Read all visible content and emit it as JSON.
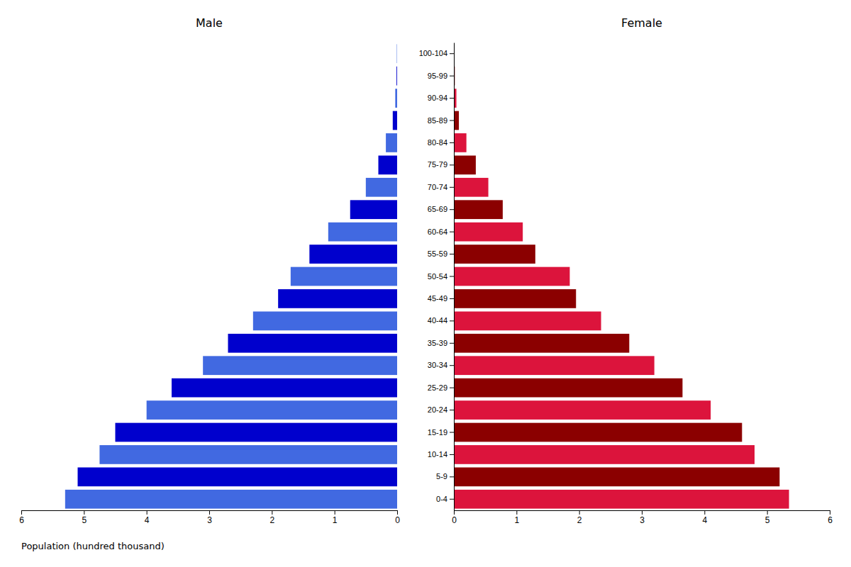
{
  "chart_data": [
    {
      "type": "bar",
      "orientation": "horizontal",
      "title": "Male",
      "xlabel": "Population (hundred thousand)",
      "categories": [
        null,
        null,
        null,
        null,
        null,
        null,
        null,
        null,
        null,
        null,
        null,
        null,
        null,
        null,
        null,
        null,
        null,
        null,
        null,
        null,
        null
      ],
      "values": [
        5.3,
        5.1,
        4.75,
        4.5,
        4.0,
        3.6,
        3.1,
        2.7,
        2.3,
        1.9,
        1.7,
        1.4,
        1.1,
        0.75,
        0.5,
        0.3,
        0.18,
        0.07,
        0.03,
        0.01,
        0.005
      ],
      "colors": [
        "#4169E1",
        "#0000CD",
        "#4169E1",
        "#0000CD",
        "#4169E1",
        "#0000CD",
        "#4169E1",
        "#0000CD",
        "#4169E1",
        "#0000CD",
        "#4169E1",
        "#0000CD",
        "#4169E1",
        "#0000CD",
        "#4169E1",
        "#0000CD",
        "#4169E1",
        "#0000CD",
        "#4169E1",
        "#0000CD",
        "#4169E1"
      ],
      "xlim": [
        6,
        0
      ],
      "xticks": [
        6,
        5,
        4,
        3,
        2,
        1,
        0
      ],
      "tick_labels": "x"
    },
    {
      "type": "bar",
      "orientation": "horizontal",
      "title": "Female",
      "categories": [
        "0-4",
        "5-9",
        "10-14",
        "15-19",
        "20-24",
        "25-29",
        "30-34",
        "35-39",
        "40-44",
        "45-49",
        "50-54",
        "55-59",
        "60-64",
        "65-69",
        "70-74",
        "75-79",
        "80-84",
        "85-89",
        "90-94",
        "95-99",
        "100-104"
      ],
      "values": [
        5.35,
        5.2,
        4.8,
        4.6,
        4.1,
        3.65,
        3.2,
        2.8,
        2.35,
        1.95,
        1.85,
        1.3,
        1.1,
        0.78,
        0.55,
        0.35,
        0.2,
        0.08,
        0.04,
        0.015,
        0.006
      ],
      "colors": [
        "#DC143C",
        "#8B0000",
        "#DC143C",
        "#8B0000",
        "#DC143C",
        "#8B0000",
        "#DC143C",
        "#8B0000",
        "#DC143C",
        "#8B0000",
        "#DC143C",
        "#8B0000",
        "#DC143C",
        "#8B0000",
        "#DC143C",
        "#8B0000",
        "#DC143C",
        "#8B0000",
        "#DC143C",
        "#8B0000",
        "#DC143C"
      ],
      "xlim": [
        0,
        6
      ],
      "xticks": [
        0,
        1,
        2,
        3,
        4,
        5,
        6
      ]
    }
  ]
}
